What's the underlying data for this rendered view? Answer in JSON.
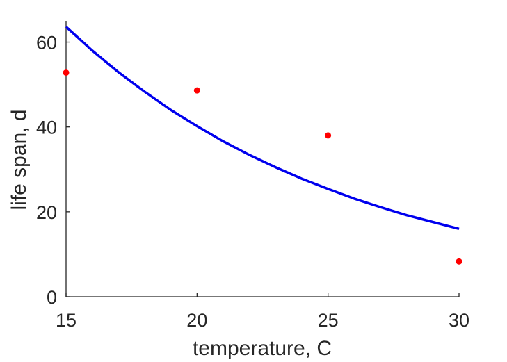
{
  "chart_data": {
    "type": "scatter",
    "title": "",
    "xlabel": "temperature, C",
    "ylabel": "life span, d",
    "xlim": [
      15,
      30
    ],
    "ylim": [
      0,
      65
    ],
    "xticks": [
      15,
      20,
      25,
      30
    ],
    "xtick_labels": [
      "15",
      "20",
      "25",
      "30"
    ],
    "yticks": [
      0,
      20,
      40,
      60
    ],
    "ytick_labels": [
      "0",
      "20",
      "40",
      "60"
    ],
    "grid": false,
    "legend": "none",
    "series": [
      {
        "kind": "scatter",
        "color": "#ff0000",
        "x": [
          15,
          20,
          25,
          30
        ],
        "y": [
          52.8,
          48.6,
          38.0,
          8.3
        ]
      },
      {
        "kind": "line",
        "color": "#0000ee",
        "x": [
          15,
          16,
          17,
          18,
          19,
          20,
          21,
          22,
          23,
          24,
          25,
          26,
          27,
          28,
          29,
          30
        ],
        "y": [
          63.6,
          58.0,
          52.9,
          48.3,
          44.0,
          40.2,
          36.6,
          33.4,
          30.5,
          27.8,
          25.4,
          23.1,
          21.1,
          19.2,
          17.6,
          16.0
        ]
      }
    ]
  }
}
